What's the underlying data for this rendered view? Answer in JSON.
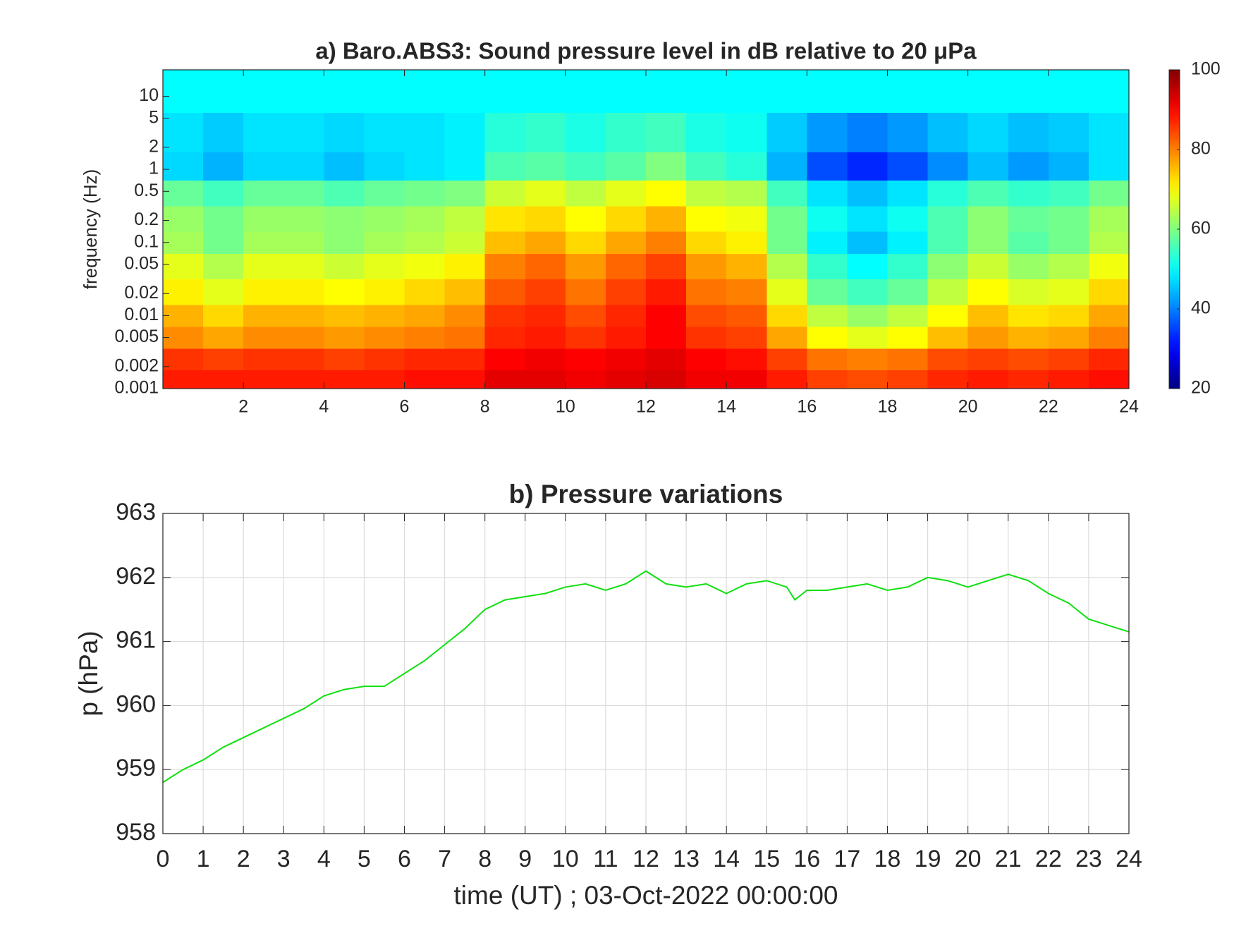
{
  "chart_data": [
    {
      "type": "heatmap",
      "title": "a) Baro.ABS3: Sound pressure level in dB relative to 20 μPa",
      "ylabel": "frequency (Hz)",
      "x": [
        0.5,
        1.5,
        2.5,
        3.5,
        4.5,
        5.5,
        6.5,
        7.5,
        8.5,
        9.5,
        10.5,
        11.5,
        12.5,
        13.5,
        14.5,
        15.5,
        16.5,
        17.5,
        18.5,
        19.5,
        20.5,
        21.5,
        22.5,
        23.5
      ],
      "y": [
        0.0013,
        0.0025,
        0.005,
        0.01,
        0.02,
        0.05,
        0.1,
        0.2,
        0.5,
        1,
        3,
        12
      ],
      "z": [
        [
          88,
          88,
          88,
          88,
          88,
          88,
          89,
          89,
          92,
          92,
          91,
          92,
          93,
          91,
          91,
          88,
          85,
          84,
          85,
          87,
          88,
          87,
          88,
          89
        ],
        [
          86,
          85,
          86,
          86,
          85,
          86,
          87,
          87,
          90,
          91,
          90,
          91,
          92,
          90,
          89,
          85,
          81,
          80,
          81,
          84,
          85,
          84,
          85,
          87
        ],
        [
          79,
          77,
          79,
          79,
          78,
          79,
          80,
          81,
          87,
          88,
          86,
          88,
          90,
          86,
          85,
          77,
          70,
          68,
          70,
          75,
          78,
          76,
          77,
          80
        ],
        [
          76,
          73,
          76,
          76,
          75,
          76,
          77,
          79,
          86,
          87,
          84,
          87,
          90,
          84,
          83,
          73,
          65,
          62,
          65,
          70,
          75,
          72,
          73,
          77
        ],
        [
          71,
          68,
          71,
          71,
          70,
          71,
          73,
          75,
          83,
          85,
          81,
          85,
          88,
          81,
          80,
          68,
          58,
          55,
          58,
          65,
          70,
          67,
          68,
          73
        ],
        [
          68,
          64,
          68,
          68,
          66,
          68,
          69,
          71,
          80,
          82,
          78,
          82,
          85,
          78,
          76,
          64,
          54,
          50,
          54,
          61,
          66,
          62,
          64,
          69
        ],
        [
          63,
          59,
          63,
          63,
          61,
          63,
          64,
          66,
          75,
          77,
          73,
          77,
          80,
          73,
          71,
          59,
          49,
          45,
          49,
          56,
          61,
          57,
          59,
          64
        ],
        [
          62,
          59,
          62,
          62,
          61,
          62,
          63,
          65,
          72,
          73,
          70,
          73,
          76,
          70,
          69,
          59,
          51,
          48,
          51,
          56,
          61,
          58,
          59,
          63
        ],
        [
          58,
          55,
          58,
          58,
          56,
          58,
          59,
          60,
          66,
          68,
          65,
          68,
          70,
          65,
          64,
          55,
          48,
          45,
          48,
          53,
          56,
          54,
          55,
          59
        ],
        [
          47,
          44,
          47,
          47,
          45,
          47,
          48,
          49,
          56,
          57,
          55,
          57,
          60,
          55,
          53,
          44,
          36,
          33,
          36,
          41,
          45,
          42,
          44,
          48
        ],
        [
          48,
          46,
          48,
          48,
          47,
          48,
          48,
          49,
          53,
          54,
          52,
          54,
          55,
          52,
          51,
          46,
          42,
          40,
          42,
          45,
          47,
          45,
          46,
          48
        ],
        [
          50,
          50,
          50,
          50,
          50,
          50,
          50,
          50,
          50,
          50,
          50,
          50,
          50,
          50,
          50,
          50,
          50,
          50,
          50,
          50,
          50,
          50,
          50,
          50
        ]
      ],
      "xlim": [
        0,
        24
      ],
      "xticks": [
        2,
        4,
        6,
        8,
        10,
        12,
        14,
        16,
        18,
        20,
        22,
        24
      ],
      "ylim": [
        0.001,
        23
      ],
      "yscale": "log",
      "yticks": [
        0.001,
        0.002,
        0.005,
        0.01,
        0.02,
        0.05,
        0.1,
        0.2,
        0.5,
        1,
        2,
        5,
        10
      ],
      "colormap": "jet",
      "clim": [
        20,
        100
      ],
      "cticks": [
        20,
        40,
        60,
        80,
        100
      ]
    },
    {
      "type": "line",
      "title": "b) Pressure variations",
      "xlabel": "time (UT) ; 03-Oct-2022 00:00:00",
      "ylabel": "p (hPa)",
      "series": [
        {
          "color": "#10e010",
          "x": [
            0,
            0.5,
            1,
            1.5,
            2,
            2.5,
            3,
            3.5,
            4,
            4.5,
            5,
            5.5,
            6,
            6.5,
            7,
            7.5,
            8,
            8.5,
            9,
            9.5,
            10,
            10.5,
            11,
            11.5,
            12,
            12.5,
            13,
            13.5,
            14,
            14.5,
            15,
            15.5,
            15.7,
            16,
            16.5,
            17,
            17.5,
            18,
            18.5,
            19,
            19.5,
            20,
            20.5,
            21,
            21.5,
            22,
            22.5,
            23,
            23.5,
            24
          ],
          "values": [
            958.8,
            959.0,
            959.15,
            959.35,
            959.5,
            959.65,
            959.8,
            959.95,
            960.15,
            960.25,
            960.3,
            960.3,
            960.5,
            960.7,
            960.95,
            961.2,
            961.5,
            961.65,
            961.7,
            961.75,
            961.85,
            961.9,
            961.8,
            961.9,
            962.1,
            961.9,
            961.85,
            961.9,
            961.75,
            961.9,
            961.95,
            961.85,
            961.65,
            961.8,
            961.8,
            961.85,
            961.9,
            961.8,
            961.85,
            962.0,
            961.95,
            961.85,
            961.95,
            962.05,
            961.95,
            961.75,
            961.6,
            961.35,
            961.25,
            961.15
          ]
        }
      ],
      "xlim": [
        0,
        24
      ],
      "xticks": [
        0,
        1,
        2,
        3,
        4,
        5,
        6,
        7,
        8,
        9,
        10,
        11,
        12,
        13,
        14,
        15,
        16,
        17,
        18,
        19,
        20,
        21,
        22,
        23,
        24
      ],
      "ylim": [
        958,
        963
      ],
      "yticks": [
        958,
        959,
        960,
        961,
        962,
        963
      ],
      "grid": true
    }
  ]
}
